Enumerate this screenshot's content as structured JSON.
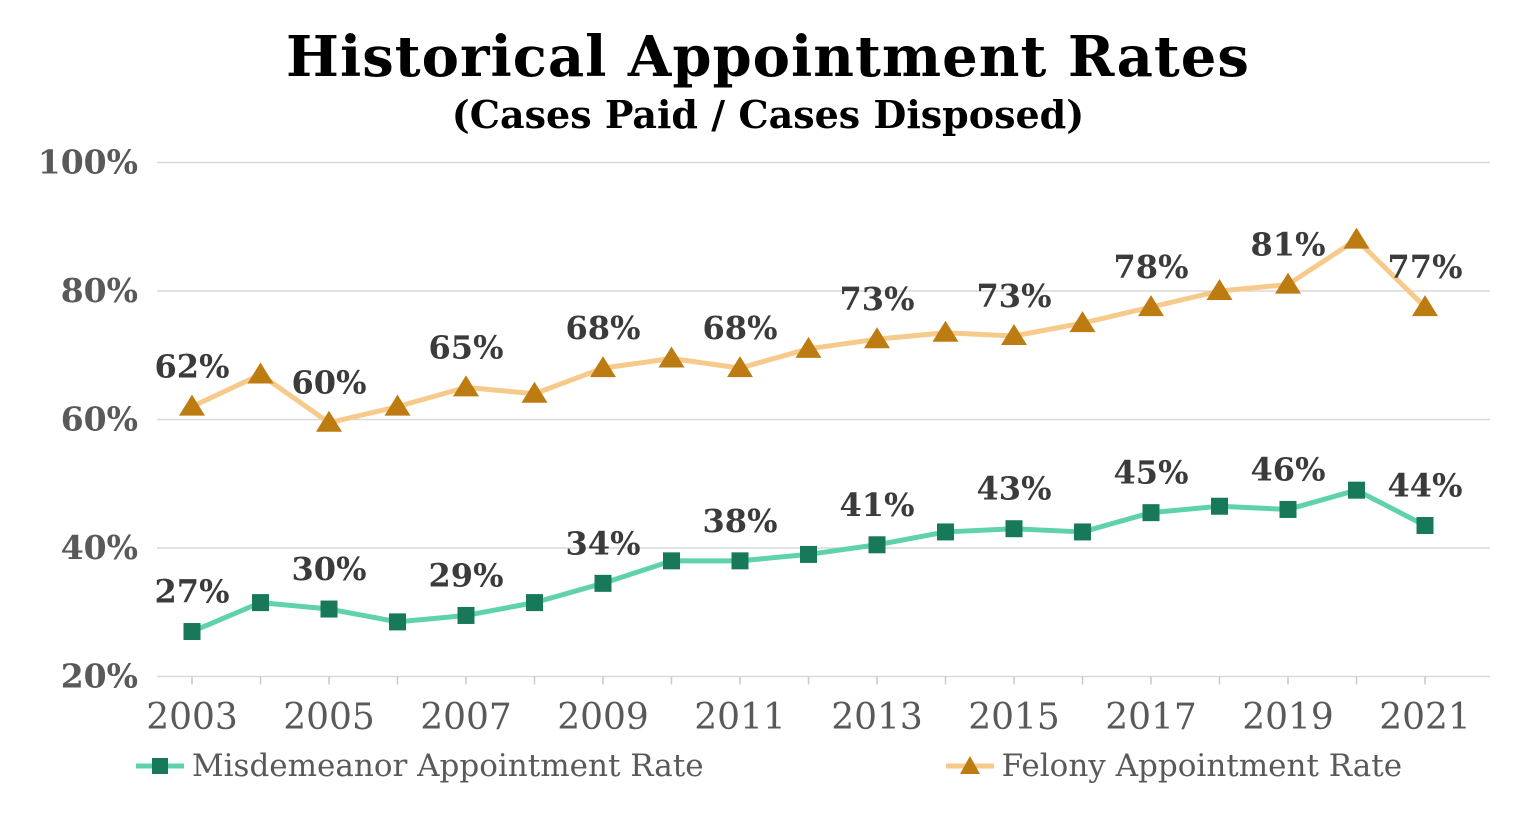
{
  "title": "Historical Appointment Rates",
  "subtitle": "(Cases Paid / Cases Disposed)",
  "colors": {
    "grid": "#d9d9d9",
    "axis_text": "#595959",
    "data_label_text": "#3b3b3b",
    "misdemeanor_line": "#5fd2ac",
    "misdemeanor_marker": "#17795a",
    "felony_line": "#f6ca8b",
    "felony_marker": "#bd7c11"
  },
  "chart_data": {
    "type": "line",
    "x": [
      2003,
      2004,
      2005,
      2006,
      2007,
      2008,
      2009,
      2010,
      2011,
      2012,
      2013,
      2014,
      2015,
      2016,
      2017,
      2018,
      2019,
      2020,
      2021
    ],
    "x_tick_labels": [
      "2003",
      "2005",
      "2007",
      "2009",
      "2011",
      "2013",
      "2015",
      "2017",
      "2019",
      "2021"
    ],
    "x_tick_years": [
      2003,
      2005,
      2007,
      2009,
      2011,
      2013,
      2015,
      2017,
      2019,
      2021
    ],
    "ylim": [
      20,
      100
    ],
    "y_ticks": [
      20,
      40,
      60,
      80,
      100
    ],
    "y_tick_labels": [
      "20%",
      "40%",
      "60%",
      "80%",
      "100%"
    ],
    "grid": true,
    "legend_position": "bottom",
    "series": [
      {
        "name": "Misdemeanor Appointment Rate",
        "marker": "square",
        "line_color": "#5fd2ac",
        "marker_color": "#17795a",
        "values": [
          27,
          31.5,
          30.5,
          28.5,
          29.5,
          31.5,
          34.5,
          38,
          38,
          39,
          40.5,
          42.5,
          43,
          42.5,
          45.5,
          46.5,
          46,
          49,
          43.5
        ],
        "labels": [
          "27%",
          null,
          "30%",
          null,
          "29%",
          null,
          "34%",
          null,
          "38%",
          null,
          "41%",
          null,
          "43%",
          null,
          "45%",
          null,
          "46%",
          null,
          "44%"
        ]
      },
      {
        "name": "Felony Appointment Rate",
        "marker": "triangle",
        "line_color": "#f6ca8b",
        "marker_color": "#bd7c11",
        "values": [
          62,
          67,
          59.5,
          62,
          65,
          64,
          68,
          69.5,
          68,
          71,
          72.5,
          73.5,
          73,
          75,
          77.5,
          80,
          81,
          88,
          77.5
        ],
        "labels": [
          "62%",
          null,
          "60%",
          null,
          "65%",
          null,
          "68%",
          null,
          "68%",
          null,
          "73%",
          null,
          "73%",
          null,
          "78%",
          null,
          "81%",
          null,
          "77%"
        ]
      }
    ]
  }
}
